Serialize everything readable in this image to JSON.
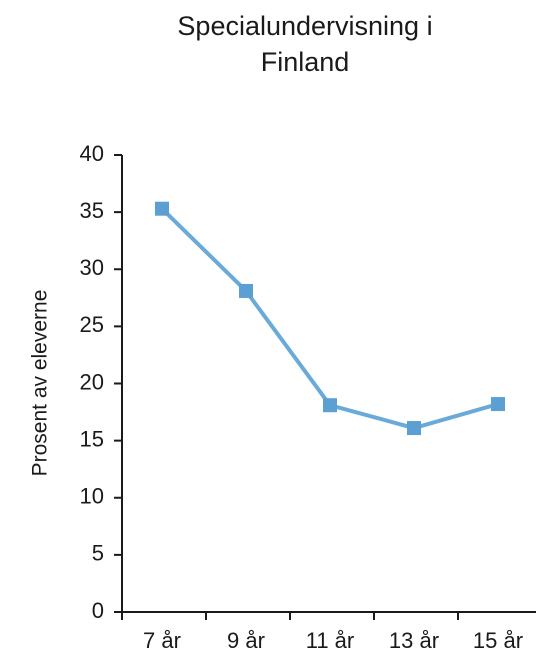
{
  "chart_data": {
    "type": "line",
    "title_lines": [
      "Specialundervisning i",
      "Finland"
    ],
    "xlabel": "",
    "ylabel": "Prosent av eleverne",
    "categories": [
      "7 år",
      "9 år",
      "11 år",
      "13 år",
      "15 år"
    ],
    "series": [
      {
        "values": [
          35.3,
          28.1,
          18.1,
          16.1,
          18.2
        ]
      }
    ],
    "ylim": [
      0,
      40
    ],
    "yticks": [
      0,
      5,
      10,
      15,
      20,
      25,
      30,
      35,
      40
    ],
    "grid": false,
    "colors": {
      "line": "#6aaad8",
      "marker": "#5b9fd3",
      "axis": "#1a1a1a"
    }
  }
}
